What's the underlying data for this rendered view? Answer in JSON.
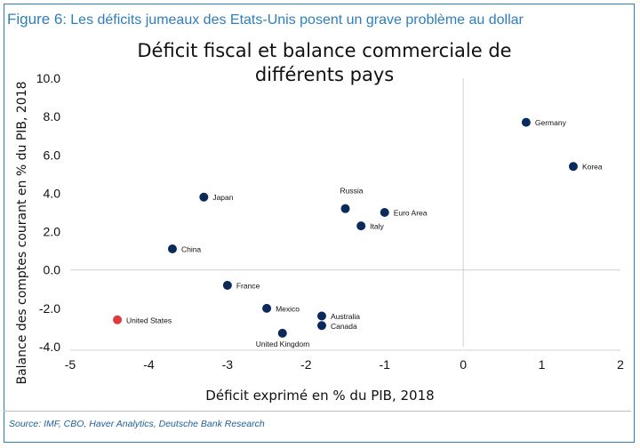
{
  "header": {
    "figure_label": "Figure 6",
    "figure_text": ": Les déficits jumeaux des Etats-Unis posent un grave problème au dollar"
  },
  "chart_data": {
    "type": "scatter",
    "title": "Déficit fiscal et balance commerciale de différents pays",
    "title_lines": [
      "Déficit fiscal et balance commerciale de",
      "différents pays"
    ],
    "xlabel": "Déficit exprimé en % du PIB, 2018",
    "ylabel": "Balance des comptes courant en % du PIB, 2018",
    "xlim": [
      -5,
      2
    ],
    "ylim": [
      -4,
      10
    ],
    "x_ticks": [
      "-5",
      "-4",
      "-3",
      "-2",
      "-1",
      "0",
      "1",
      "2"
    ],
    "y_ticks": [
      "10.0",
      "8.0",
      "6.0",
      "4.0",
      "2.0",
      "0.0",
      "-2.0",
      "-4.0"
    ],
    "grid": false,
    "reference_lines": {
      "x": 0,
      "y": 0
    },
    "point_color": "#0b2a5c",
    "highlight_color": "#e03a3e",
    "points": [
      {
        "label": "Germany",
        "x": 0.8,
        "y": 7.7
      },
      {
        "label": "Korea",
        "x": 1.4,
        "y": 5.4
      },
      {
        "label": "Japan",
        "x": -3.3,
        "y": 3.8
      },
      {
        "label": "Russia",
        "x": -1.5,
        "y": 3.2
      },
      {
        "label": "Euro Area",
        "x": -1.0,
        "y": 3.0
      },
      {
        "label": "Italy",
        "x": -1.3,
        "y": 2.3
      },
      {
        "label": "China",
        "x": -3.7,
        "y": 1.1
      },
      {
        "label": "France",
        "x": -3.0,
        "y": -0.8
      },
      {
        "label": "Mexico",
        "x": -2.5,
        "y": -2.0
      },
      {
        "label": "Australia",
        "x": -1.8,
        "y": -2.4
      },
      {
        "label": "Canada",
        "x": -1.8,
        "y": -2.9
      },
      {
        "label": "United Kingdom",
        "x": -2.3,
        "y": -3.3
      },
      {
        "label": "United States",
        "x": -4.4,
        "y": -2.6,
        "highlight": true
      }
    ]
  },
  "source": "Source: IMF, CBO, Haver Analytics, Deutsche Bank Research"
}
